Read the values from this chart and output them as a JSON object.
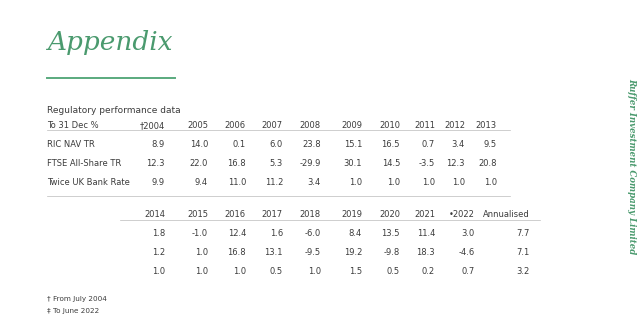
{
  "title": "Appendix",
  "subtitle": "Regulatory performance data",
  "side_text": "Ruffer Investment Company Limited",
  "footnote1": "† From July 2004",
  "footnote2": "‡ To June 2022",
  "header_line1_label": "To 31 Dec %",
  "header_line1_cols": [
    "†2004",
    "2005",
    "2006",
    "2007",
    "2008",
    "2009",
    "2010",
    "2011",
    "2012",
    "2013"
  ],
  "rows_top": [
    [
      "RIC NAV TR",
      "8.9",
      "14.0",
      "0.1",
      "6.0",
      "23.8",
      "15.1",
      "16.5",
      "0.7",
      "3.4",
      "9.5"
    ],
    [
      "FTSE All-Share TR",
      "12.3",
      "22.0",
      "16.8",
      "5.3",
      "-29.9",
      "30.1",
      "14.5",
      "-3.5",
      "12.3",
      "20.8"
    ],
    [
      "Twice UK Bank Rate",
      "9.9",
      "9.4",
      "11.0",
      "11.2",
      "3.4",
      "1.0",
      "1.0",
      "1.0",
      "1.0",
      "1.0"
    ]
  ],
  "header_line2_cols": [
    "2014",
    "2015",
    "2016",
    "2017",
    "2018",
    "2019",
    "2020",
    "2021",
    "•2022",
    "Annualised"
  ],
  "rows_bottom": [
    [
      "1.8",
      "-1.0",
      "12.4",
      "1.6",
      "-6.0",
      "8.4",
      "13.5",
      "11.4",
      "3.0",
      "7.7"
    ],
    [
      "1.2",
      "1.0",
      "16.8",
      "13.1",
      "-9.5",
      "19.2",
      "-9.8",
      "18.3",
      "-4.6",
      "7.1"
    ],
    [
      "1.0",
      "1.0",
      "1.0",
      "0.5",
      "1.0",
      "1.5",
      "0.5",
      "0.2",
      "0.7",
      "3.2"
    ]
  ],
  "title_color": "#4a9a6e",
  "line_color": "#5aaa7e",
  "text_color": "#3c3c3c",
  "bg_color": "#ffffff",
  "side_text_color": "#4a9a6e",
  "sep_color": "#bbbbbb"
}
